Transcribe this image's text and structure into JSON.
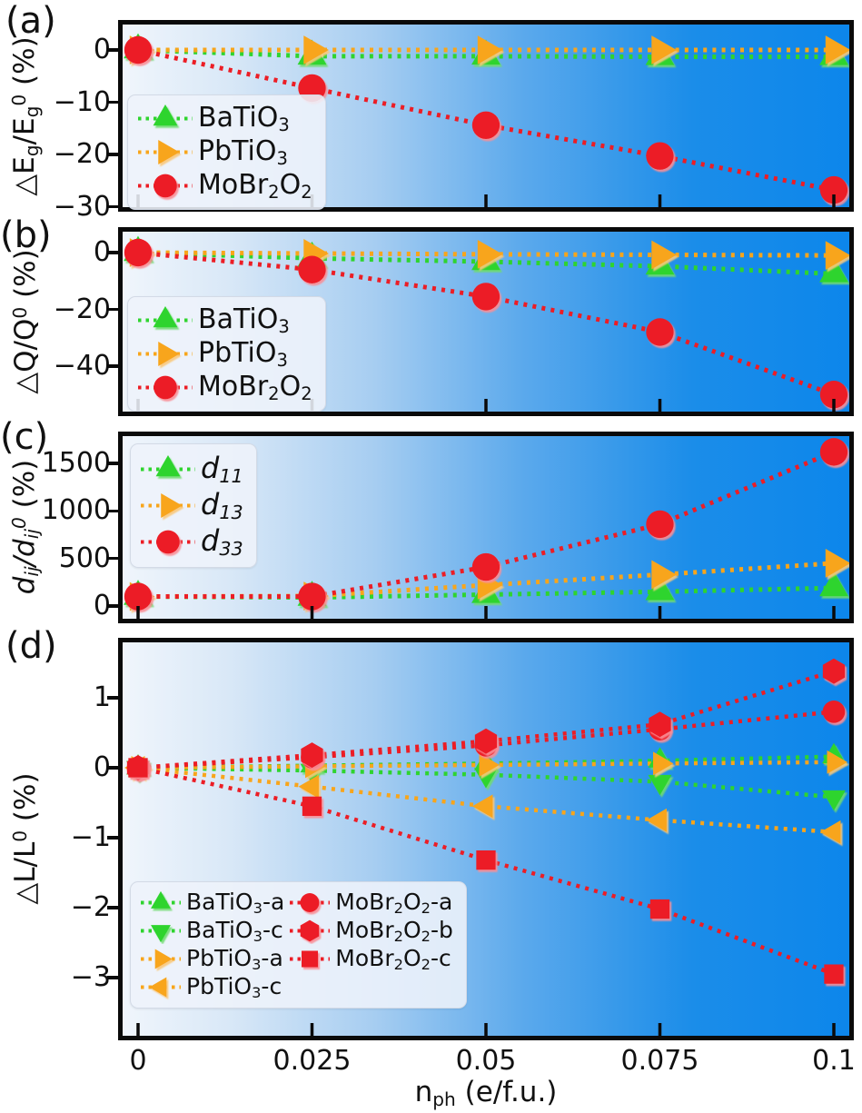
{
  "figure": {
    "xlabel": "n_ph_ (e/f.u.)",
    "x_tick_labels": [
      "0",
      "0.025",
      "0.05",
      "0.075",
      "0.1"
    ],
    "colors": {
      "green": "#2FD42F",
      "orange": "#F8A51B",
      "red": "#EC1D25",
      "axis": "#0a0a0a",
      "background_gradient": [
        "#f1f6fc",
        "#d9e8f7",
        "#a6cdf1",
        "#5ba9ec",
        "#1b8de9",
        "#0c86eb"
      ],
      "legend_background": "#edf1f9"
    }
  },
  "chart_data": [
    {
      "type": "line",
      "panel": "a",
      "label": "(a)",
      "ylabel": "△E_g_/E_g_^0^ (%)",
      "xlabel": "n_ph_ (e/f.u.)",
      "x": [
        0,
        0.025,
        0.05,
        0.075,
        0.1
      ],
      "xlim": [
        -0.003,
        0.103
      ],
      "ylim": [
        -30.9,
        5.7
      ],
      "yticks": [
        {
          "v": 0,
          "t": "0"
        },
        {
          "v": -10,
          "t": "−10"
        },
        {
          "v": -20,
          "t": "−20"
        },
        {
          "v": -30,
          "t": "−30"
        }
      ],
      "grid": false,
      "legend_position": "upper left",
      "series": [
        {
          "name": "BaTiO_3_",
          "marker": "triangle-up",
          "color": "green",
          "values": [
            0,
            -1.2,
            -1.2,
            -1.3,
            -1.3
          ]
        },
        {
          "name": "PbTiO_3_",
          "marker": "triangle-right",
          "color": "orange",
          "values": [
            0,
            0,
            0,
            0,
            0
          ]
        },
        {
          "name": "MoBr_2_O_2_",
          "marker": "circle",
          "color": "red",
          "values": [
            0,
            -7.3,
            -14.4,
            -20.3,
            -26.8
          ]
        }
      ]
    },
    {
      "type": "line",
      "panel": "b",
      "label": "(b)",
      "ylabel": "△Q/Q^0^ (%)",
      "x": [
        0,
        0.025,
        0.05,
        0.075,
        0.1
      ],
      "xlim": [
        -0.003,
        0.103
      ],
      "ylim": [
        -57.6,
        9
      ],
      "yticks": [
        {
          "v": 0,
          "t": "0"
        },
        {
          "v": -20,
          "t": "−20"
        },
        {
          "v": -40,
          "t": "−40"
        }
      ],
      "grid": false,
      "legend_position": "lower left",
      "series": [
        {
          "name": "BaTiO_3_",
          "marker": "triangle-up",
          "color": "green",
          "values": [
            0,
            -2,
            -3.2,
            -4.8,
            -7.5
          ]
        },
        {
          "name": "PbTiO_3_",
          "marker": "triangle-right",
          "color": "orange",
          "values": [
            0,
            -0.3,
            -0.6,
            -0.8,
            -1.0
          ]
        },
        {
          "name": "MoBr_2_O_2_",
          "marker": "circle",
          "color": "red",
          "values": [
            0,
            -6,
            -15.5,
            -28,
            -50
          ]
        }
      ]
    },
    {
      "type": "line",
      "panel": "c",
      "label": "(c)",
      "ylabel": "*d_ij_/d_ij_^0^* (%)",
      "legend_italic": true,
      "x": [
        0,
        0.025,
        0.05,
        0.075,
        0.1
      ],
      "xlim": [
        -0.003,
        0.103
      ],
      "ylim": [
        -181,
        1834
      ],
      "yticks": [
        {
          "v": 0,
          "t": "0"
        },
        {
          "v": 500,
          "t": "500"
        },
        {
          "v": 1000,
          "t": "1000"
        },
        {
          "v": 1500,
          "t": "1500"
        }
      ],
      "grid": false,
      "legend_position": "upper left",
      "series": [
        {
          "name": "d_11_",
          "marker": "triangle-up",
          "color": "green",
          "values": [
            100,
            90,
            120,
            150,
            190
          ]
        },
        {
          "name": "d_13_",
          "marker": "triangle-right",
          "color": "orange",
          "values": [
            100,
            105,
            220,
            330,
            450
          ]
        },
        {
          "name": "d_33_",
          "marker": "circle",
          "color": "red",
          "values": [
            100,
            100,
            410,
            860,
            1620
          ]
        }
      ]
    },
    {
      "type": "line",
      "panel": "d",
      "label": "(d)",
      "ylabel": "△L/L^0^ (%)",
      "x": [
        0,
        0.025,
        0.05,
        0.075,
        0.1
      ],
      "xlim": [
        -0.003,
        0.103
      ],
      "ylim": [
        -3.9,
        1.86
      ],
      "yticks": [
        {
          "v": 1,
          "t": "1"
        },
        {
          "v": 0,
          "t": "0"
        },
        {
          "v": -1,
          "t": "−1"
        },
        {
          "v": -2,
          "t": "−2"
        },
        {
          "v": -3,
          "t": "−3"
        }
      ],
      "grid": false,
      "legend_position": "lower left",
      "legend_columns": 2,
      "series": [
        {
          "name": "BaTiO_3_-a",
          "marker": "triangle-up",
          "color": "green",
          "values": [
            0,
            0.03,
            0.06,
            0.1,
            0.16
          ]
        },
        {
          "name": "BaTiO_3_-c",
          "marker": "triangle-down",
          "color": "green",
          "values": [
            0,
            -0.04,
            -0.1,
            -0.2,
            -0.42
          ]
        },
        {
          "name": "PbTiO_3_-a",
          "marker": "triangle-right",
          "color": "orange",
          "values": [
            0,
            0.02,
            0.04,
            0.06,
            0.08
          ]
        },
        {
          "name": "PbTiO_3_-c",
          "marker": "triangle-left",
          "color": "orange",
          "values": [
            0,
            -0.27,
            -0.55,
            -0.75,
            -0.92
          ]
        },
        {
          "name": "MoBr_2_O_2_-a",
          "marker": "circle",
          "color": "red",
          "values": [
            0,
            0.15,
            0.32,
            0.55,
            0.8
          ]
        },
        {
          "name": "MoBr_2_O_2_-b",
          "marker": "hexagon",
          "color": "red",
          "values": [
            0,
            0.18,
            0.38,
            0.62,
            1.38
          ]
        },
        {
          "name": "MoBr_2_O_2_-c",
          "marker": "square",
          "color": "red",
          "values": [
            0,
            -0.55,
            -1.32,
            -2.02,
            -2.95
          ]
        }
      ]
    }
  ]
}
